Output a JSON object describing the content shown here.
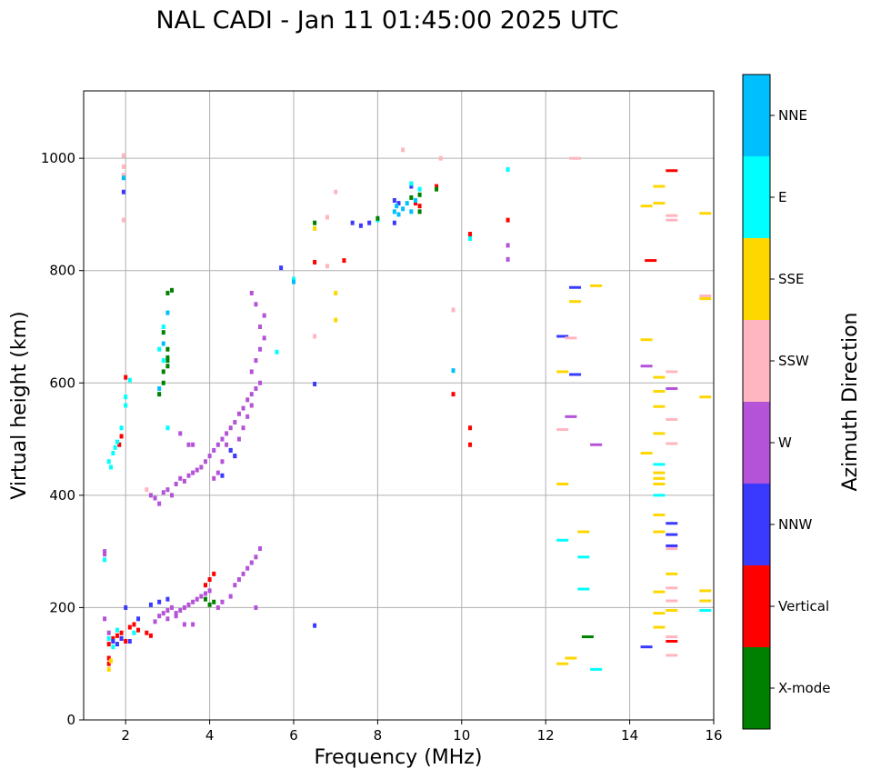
{
  "chart_data": {
    "type": "scatter",
    "title": "NAL CADI - Jan 11 01:45:00 2025 UTC",
    "xlabel": "Frequency (MHz)",
    "ylabel": "Virtual height (km)",
    "xlim": [
      1,
      16
    ],
    "ylim": [
      0,
      1120
    ],
    "xticks": [
      2,
      4,
      6,
      8,
      10,
      12,
      14,
      16
    ],
    "yticks": [
      0,
      200,
      400,
      600,
      800,
      1000
    ],
    "grid": true,
    "colorbar": {
      "label": "Azimuth Direction",
      "placement": "right",
      "categories": [
        {
          "name": "X-mode",
          "color": "#008000"
        },
        {
          "name": "Vertical",
          "color": "#ff0000"
        },
        {
          "name": "NNW",
          "color": "#3a3aff"
        },
        {
          "name": "W",
          "color": "#b452d8"
        },
        {
          "name": "SSW",
          "color": "#ffb6c1"
        },
        {
          "name": "SSE",
          "color": "#ffd700"
        },
        {
          "name": "E",
          "color": "#00ffff"
        },
        {
          "name": "NNE",
          "color": "#00bfff"
        }
      ]
    },
    "series": [
      {
        "name": "W",
        "points": [
          [
            1.5,
            300
          ],
          [
            1.5,
            295
          ],
          [
            1.5,
            180
          ],
          [
            1.6,
            155
          ],
          [
            1.7,
            140
          ],
          [
            2.7,
            175
          ],
          [
            2.8,
            185
          ],
          [
            2.9,
            190
          ],
          [
            3.0,
            195
          ],
          [
            3.0,
            180
          ],
          [
            3.1,
            200
          ],
          [
            3.2,
            190
          ],
          [
            3.3,
            195
          ],
          [
            3.4,
            200
          ],
          [
            3.5,
            205
          ],
          [
            3.6,
            210
          ],
          [
            3.7,
            215
          ],
          [
            3.8,
            220
          ],
          [
            3.9,
            225
          ],
          [
            4.0,
            230
          ],
          [
            3.4,
            170
          ],
          [
            3.6,
            170
          ],
          [
            3.2,
            185
          ],
          [
            2.6,
            400
          ],
          [
            2.7,
            395
          ],
          [
            2.8,
            385
          ],
          [
            2.9,
            405
          ],
          [
            3.0,
            410
          ],
          [
            3.1,
            400
          ],
          [
            3.2,
            420
          ],
          [
            3.3,
            430
          ],
          [
            3.4,
            425
          ],
          [
            3.5,
            435
          ],
          [
            3.6,
            440
          ],
          [
            3.7,
            445
          ],
          [
            3.8,
            450
          ],
          [
            3.9,
            460
          ],
          [
            4.0,
            470
          ],
          [
            4.1,
            480
          ],
          [
            4.2,
            490
          ],
          [
            4.3,
            500
          ],
          [
            4.4,
            510
          ],
          [
            4.5,
            520
          ],
          [
            4.6,
            530
          ],
          [
            4.7,
            545
          ],
          [
            4.8,
            555
          ],
          [
            4.9,
            570
          ],
          [
            5.0,
            580
          ],
          [
            5.1,
            590
          ],
          [
            5.2,
            600
          ],
          [
            5.0,
            620
          ],
          [
            5.1,
            640
          ],
          [
            5.2,
            660
          ],
          [
            5.3,
            680
          ],
          [
            5.2,
            700
          ],
          [
            5.3,
            720
          ],
          [
            5.1,
            740
          ],
          [
            5.0,
            760
          ],
          [
            4.2,
            440
          ],
          [
            4.3,
            460
          ],
          [
            4.5,
            480
          ],
          [
            4.7,
            500
          ],
          [
            4.8,
            520
          ],
          [
            4.9,
            540
          ],
          [
            5.0,
            560
          ],
          [
            4.6,
            470
          ],
          [
            4.4,
            490
          ],
          [
            4.1,
            430
          ],
          [
            3.5,
            490
          ],
          [
            3.3,
            510
          ],
          [
            3.6,
            490
          ],
          [
            4.5,
            220
          ],
          [
            4.6,
            240
          ],
          [
            4.7,
            250
          ],
          [
            4.8,
            260
          ],
          [
            4.9,
            270
          ],
          [
            5.0,
            280
          ],
          [
            5.1,
            290
          ],
          [
            5.2,
            305
          ],
          [
            4.3,
            210
          ],
          [
            4.2,
            200
          ],
          [
            5.1,
            200
          ],
          [
            13.2,
            490
          ],
          [
            12.6,
            540
          ],
          [
            14.4,
            630
          ],
          [
            15.0,
            590
          ],
          [
            11.1,
            845
          ],
          [
            11.1,
            820
          ]
        ]
      },
      {
        "name": "Vertical",
        "points": [
          [
            1.6,
            135
          ],
          [
            1.7,
            145
          ],
          [
            1.8,
            150
          ],
          [
            1.9,
            145
          ],
          [
            2.0,
            140
          ],
          [
            2.1,
            165
          ],
          [
            2.2,
            170
          ],
          [
            2.3,
            160
          ],
          [
            2.5,
            155
          ],
          [
            2.6,
            150
          ],
          [
            1.9,
            155
          ],
          [
            4.0,
            250
          ],
          [
            4.1,
            260
          ],
          [
            3.9,
            240
          ],
          [
            1.85,
            490
          ],
          [
            1.9,
            505
          ],
          [
            2.0,
            610
          ],
          [
            6.5,
            815
          ],
          [
            7.2,
            818
          ],
          [
            8.9,
            920
          ],
          [
            9.0,
            915
          ],
          [
            9.4,
            950
          ],
          [
            9.8,
            580
          ],
          [
            10.2,
            520
          ],
          [
            10.2,
            490
          ],
          [
            10.2,
            865
          ],
          [
            11.1,
            890
          ],
          [
            14.5,
            818
          ],
          [
            15.0,
            978
          ],
          [
            15.0,
            140
          ],
          [
            1.6,
            100
          ],
          [
            1.6,
            110
          ]
        ]
      },
      {
        "name": "NNW",
        "points": [
          [
            1.7,
            140
          ],
          [
            1.8,
            135
          ],
          [
            1.9,
            145
          ],
          [
            2.1,
            140
          ],
          [
            2.3,
            180
          ],
          [
            2.6,
            205
          ],
          [
            2.8,
            210
          ],
          [
            3.0,
            215
          ],
          [
            2.0,
            200
          ],
          [
            1.95,
            940
          ],
          [
            4.5,
            480
          ],
          [
            4.3,
            435
          ],
          [
            4.6,
            470
          ],
          [
            5.7,
            805
          ],
          [
            6.5,
            168
          ],
          [
            6.5,
            598
          ],
          [
            7.4,
            885
          ],
          [
            7.6,
            880
          ],
          [
            7.8,
            885
          ],
          [
            8.4,
            885
          ],
          [
            8.4,
            925
          ],
          [
            8.5,
            920
          ],
          [
            8.8,
            950
          ],
          [
            12.4,
            683
          ],
          [
            12.7,
            770
          ],
          [
            12.7,
            615
          ],
          [
            15.0,
            350
          ],
          [
            15.0,
            310
          ],
          [
            15.0,
            330
          ],
          [
            14.4,
            130
          ]
        ]
      },
      {
        "name": "SSW",
        "points": [
          [
            1.95,
            1005
          ],
          [
            1.95,
            985
          ],
          [
            1.95,
            970
          ],
          [
            1.95,
            890
          ],
          [
            2.5,
            410
          ],
          [
            6.5,
            683
          ],
          [
            7.0,
            940
          ],
          [
            6.8,
            808
          ],
          [
            6.8,
            895
          ],
          [
            8.6,
            1015
          ],
          [
            9.5,
            1000
          ],
          [
            9.8,
            730
          ],
          [
            12.6,
            680
          ],
          [
            12.4,
            517
          ],
          [
            12.7,
            1000
          ],
          [
            15.0,
            620
          ],
          [
            15.0,
            535
          ],
          [
            15.0,
            492
          ],
          [
            15.0,
            890
          ],
          [
            15.0,
            898
          ],
          [
            15.0,
            305
          ],
          [
            15.0,
            235
          ],
          [
            15.0,
            212
          ],
          [
            15.0,
            148
          ],
          [
            15.0,
            115
          ],
          [
            15.8,
            755
          ]
        ]
      },
      {
        "name": "SSE",
        "points": [
          [
            1.6,
            90
          ],
          [
            1.65,
            105
          ],
          [
            6.5,
            875
          ],
          [
            7.0,
            760
          ],
          [
            7.0,
            712
          ],
          [
            12.4,
            620
          ],
          [
            12.4,
            420
          ],
          [
            12.4,
            100
          ],
          [
            12.6,
            110
          ],
          [
            12.7,
            745
          ],
          [
            13.2,
            773
          ],
          [
            12.9,
            335
          ],
          [
            14.4,
            915
          ],
          [
            14.4,
            677
          ],
          [
            14.4,
            475
          ],
          [
            14.7,
            950
          ],
          [
            14.7,
            920
          ],
          [
            14.7,
            610
          ],
          [
            14.7,
            585
          ],
          [
            14.7,
            558
          ],
          [
            14.7,
            510
          ],
          [
            14.7,
            440
          ],
          [
            14.7,
            430
          ],
          [
            14.7,
            420
          ],
          [
            14.7,
            365
          ],
          [
            14.7,
            335
          ],
          [
            14.7,
            228
          ],
          [
            14.7,
            190
          ],
          [
            14.7,
            165
          ],
          [
            15.0,
            260
          ],
          [
            15.0,
            195
          ],
          [
            15.8,
            902
          ],
          [
            15.8,
            575
          ],
          [
            15.8,
            230
          ],
          [
            15.8,
            212
          ],
          [
            15.8,
            750
          ]
        ]
      },
      {
        "name": "E",
        "points": [
          [
            1.5,
            285
          ],
          [
            1.6,
            460
          ],
          [
            1.65,
            450
          ],
          [
            1.7,
            475
          ],
          [
            1.75,
            485
          ],
          [
            1.8,
            495
          ],
          [
            1.9,
            520
          ],
          [
            2.0,
            560
          ],
          [
            2.0,
            575
          ],
          [
            2.1,
            605
          ],
          [
            1.7,
            130
          ],
          [
            1.6,
            145
          ],
          [
            1.8,
            160
          ],
          [
            2.2,
            155
          ],
          [
            2.9,
            700
          ],
          [
            2.8,
            660
          ],
          [
            2.9,
            640
          ],
          [
            3.0,
            520
          ],
          [
            5.6,
            655
          ],
          [
            6.0,
            785
          ],
          [
            8.0,
            890
          ],
          [
            8.8,
            955
          ],
          [
            9.0,
            945
          ],
          [
            10.2,
            857
          ],
          [
            11.1,
            980
          ],
          [
            12.4,
            320
          ],
          [
            12.9,
            290
          ],
          [
            12.9,
            233
          ],
          [
            13.2,
            90
          ],
          [
            14.7,
            455
          ],
          [
            14.7,
            400
          ],
          [
            15.8,
            195
          ]
        ]
      },
      {
        "name": "NNE",
        "points": [
          [
            1.95,
            965
          ],
          [
            6.0,
            780
          ],
          [
            9.8,
            622
          ],
          [
            8.4,
            905
          ],
          [
            8.45,
            915
          ],
          [
            8.5,
            900
          ],
          [
            8.6,
            910
          ],
          [
            8.7,
            920
          ],
          [
            8.8,
            905
          ],
          [
            8.9,
            925
          ],
          [
            2.9,
            670
          ],
          [
            2.8,
            590
          ],
          [
            3.0,
            725
          ]
        ]
      },
      {
        "name": "X-mode",
        "points": [
          [
            2.8,
            580
          ],
          [
            2.9,
            600
          ],
          [
            2.9,
            620
          ],
          [
            3.0,
            640
          ],
          [
            3.0,
            660
          ],
          [
            3.1,
            765
          ],
          [
            3.0,
            760
          ],
          [
            2.9,
            690
          ],
          [
            3.0,
            645
          ],
          [
            3.0,
            630
          ],
          [
            4.0,
            205
          ],
          [
            4.1,
            210
          ],
          [
            3.9,
            215
          ],
          [
            6.5,
            885
          ],
          [
            8.0,
            893
          ],
          [
            8.8,
            930
          ],
          [
            9.0,
            935
          ],
          [
            9.0,
            905
          ],
          [
            9.4,
            945
          ],
          [
            13.0,
            148
          ]
        ]
      }
    ]
  }
}
